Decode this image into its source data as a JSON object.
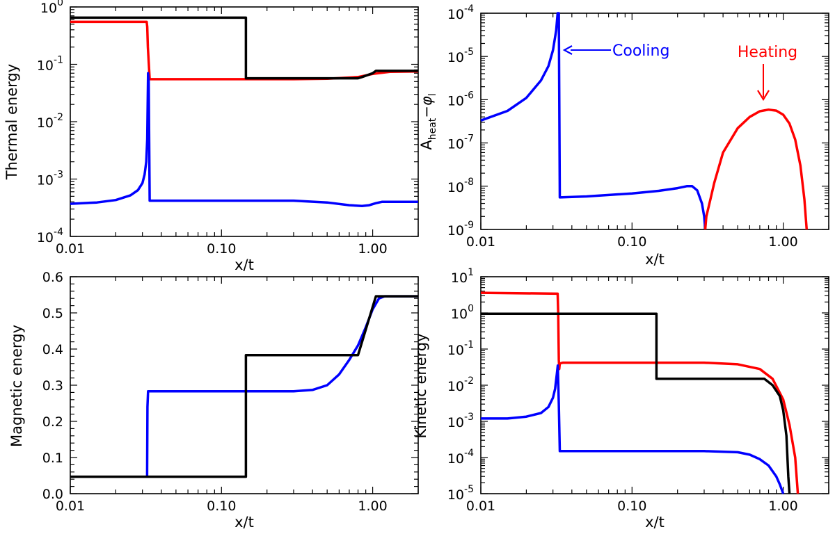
{
  "chart_data": [
    {
      "id": "thermal",
      "type": "line",
      "yscale": "log",
      "xscale": "log",
      "xlim": [
        0.01,
        2.0
      ],
      "ylim": [
        0.0001,
        1
      ],
      "xlabel": "x/t",
      "ylabel": "Thermal energy",
      "xticks": [
        {
          "value": 0.01,
          "label": "0.01"
        },
        {
          "value": 0.1,
          "label": "0.10"
        },
        {
          "value": 1.0,
          "label": "1.00"
        }
      ],
      "yticks": [
        {
          "value": 0.0001,
          "mant": "10",
          "exp": "-4"
        },
        {
          "value": 0.001,
          "mant": "10",
          "exp": "-3"
        },
        {
          "value": 0.01,
          "mant": "10",
          "exp": "-2"
        },
        {
          "value": 0.1,
          "mant": "10",
          "exp": "-1"
        },
        {
          "value": 1,
          "mant": "10",
          "exp": "0"
        }
      ],
      "series": [
        {
          "name": "red",
          "color": "#ff0000",
          "points": [
            [
              0.01,
              0.55
            ],
            [
              0.032,
              0.55
            ],
            [
              0.0323,
              0.45
            ],
            [
              0.0326,
              0.2
            ],
            [
              0.033,
              0.11
            ],
            [
              0.0335,
              0.055
            ],
            [
              0.1,
              0.055
            ],
            [
              0.3,
              0.055
            ],
            [
              0.5,
              0.056
            ],
            [
              0.8,
              0.06
            ],
            [
              1.0,
              0.068
            ],
            [
              1.3,
              0.074
            ],
            [
              2.0,
              0.075
            ]
          ]
        },
        {
          "name": "blue",
          "color": "#0000ff",
          "points": [
            [
              0.01,
              0.00037
            ],
            [
              0.015,
              0.00039
            ],
            [
              0.02,
              0.00043
            ],
            [
              0.025,
              0.00052
            ],
            [
              0.028,
              0.00064
            ],
            [
              0.03,
              0.00085
            ],
            [
              0.031,
              0.0012
            ],
            [
              0.0318,
              0.002
            ],
            [
              0.0323,
              0.005
            ],
            [
              0.0327,
              0.07
            ],
            [
              0.033,
              0.05
            ],
            [
              0.0335,
              0.00042
            ],
            [
              0.1,
              0.00042
            ],
            [
              0.3,
              0.00042
            ],
            [
              0.5,
              0.00039
            ],
            [
              0.7,
              0.00035
            ],
            [
              0.85,
              0.00034
            ],
            [
              0.95,
              0.00035
            ],
            [
              1.05,
              0.00038
            ],
            [
              1.15,
              0.0004
            ],
            [
              2.0,
              0.0004
            ]
          ]
        },
        {
          "name": "black",
          "color": "#000000",
          "points": [
            [
              0.01,
              0.65
            ],
            [
              0.145,
              0.65
            ],
            [
              0.145,
              0.057
            ],
            [
              0.8,
              0.057
            ],
            [
              0.85,
              0.06
            ],
            [
              1.0,
              0.07
            ],
            [
              1.05,
              0.077
            ],
            [
              2.0,
              0.077
            ]
          ]
        }
      ]
    },
    {
      "id": "aheat",
      "type": "line",
      "yscale": "log",
      "xscale": "log",
      "xlim": [
        0.01,
        2.0
      ],
      "ylim": [
        1e-09,
        0.0001
      ],
      "xlabel": "x/t",
      "ylabel": "A_heat − φ_l",
      "ylabel_parts": {
        "a": "A",
        "heat": "heat",
        "minus": "−",
        "phi": "φ",
        "l": "l"
      },
      "xticks": [
        {
          "value": 0.01,
          "label": "0.01"
        },
        {
          "value": 0.1,
          "label": "0.10"
        },
        {
          "value": 1.0,
          "label": "1.00"
        }
      ],
      "yticks": [
        {
          "value": 1e-09,
          "mant": "10",
          "exp": "-9"
        },
        {
          "value": 1e-08,
          "mant": "10",
          "exp": "-8"
        },
        {
          "value": 1e-07,
          "mant": "10",
          "exp": "-7"
        },
        {
          "value": 1e-06,
          "mant": "10",
          "exp": "-6"
        },
        {
          "value": 1e-05,
          "mant": "10",
          "exp": "-5"
        },
        {
          "value": 0.0001,
          "mant": "10",
          "exp": "-4"
        }
      ],
      "annotations": [
        {
          "text": "Cooling",
          "color": "#0000ff",
          "arrow_to": [
            0.0335,
            1.1e-05
          ]
        },
        {
          "text": "Heating",
          "color": "#ff0000",
          "arrow_to": [
            0.75,
            1.4e-06
          ]
        }
      ],
      "series": [
        {
          "name": "blue",
          "color": "#0000ff",
          "points": [
            [
              0.01,
              3.3e-07
            ],
            [
              0.015,
              5.5e-07
            ],
            [
              0.02,
              1.1e-06
            ],
            [
              0.025,
              2.8e-06
            ],
            [
              0.028,
              6e-06
            ],
            [
              0.03,
              1.4e-05
            ],
            [
              0.0315,
              4e-05
            ],
            [
              0.0322,
              0.0001
            ],
            [
              0.0328,
              0.0001
            ],
            [
              0.0333,
              5.5e-09
            ],
            [
              0.05,
              5.8e-09
            ],
            [
              0.1,
              6.8e-09
            ],
            [
              0.15,
              7.8e-09
            ],
            [
              0.2,
              9e-09
            ],
            [
              0.23,
              1e-08
            ],
            [
              0.25,
              1e-08
            ],
            [
              0.27,
              8e-09
            ],
            [
              0.29,
              4e-09
            ],
            [
              0.3,
              2e-09
            ],
            [
              0.305,
              1e-09
            ]
          ]
        },
        {
          "name": "red",
          "color": "#ff0000",
          "points": [
            [
              0.305,
              1e-09
            ],
            [
              0.31,
              2e-09
            ],
            [
              0.33,
              5e-09
            ],
            [
              0.35,
              1.2e-08
            ],
            [
              0.4,
              6e-08
            ],
            [
              0.5,
              2.2e-07
            ],
            [
              0.6,
              4e-07
            ],
            [
              0.7,
              5.4e-07
            ],
            [
              0.8,
              5.9e-07
            ],
            [
              0.9,
              5.6e-07
            ],
            [
              1.0,
              4.5e-07
            ],
            [
              1.1,
              2.8e-07
            ],
            [
              1.2,
              1.2e-07
            ],
            [
              1.3,
              3e-08
            ],
            [
              1.38,
              5e-09
            ],
            [
              1.43,
              1e-09
            ]
          ]
        }
      ]
    },
    {
      "id": "magnetic",
      "type": "line",
      "yscale": "linear",
      "xscale": "log",
      "xlim": [
        0.01,
        2.0
      ],
      "ylim": [
        0.0,
        0.6
      ],
      "xlabel": "x/t",
      "ylabel": "Magnetic energy",
      "xticks": [
        {
          "value": 0.01,
          "label": "0.01"
        },
        {
          "value": 0.1,
          "label": "0.10"
        },
        {
          "value": 1.0,
          "label": "1.00"
        }
      ],
      "yticks": [
        {
          "value": 0.0,
          "label": "0.0"
        },
        {
          "value": 0.1,
          "label": "0.1"
        },
        {
          "value": 0.2,
          "label": "0.2"
        },
        {
          "value": 0.3,
          "label": "0.3"
        },
        {
          "value": 0.4,
          "label": "0.4"
        },
        {
          "value": 0.5,
          "label": "0.5"
        },
        {
          "value": 0.6,
          "label": "0.6"
        }
      ],
      "series": [
        {
          "name": "blue",
          "color": "#0000ff",
          "points": [
            [
              0.0322,
              0.045
            ],
            [
              0.0324,
              0.24
            ],
            [
              0.0327,
              0.283
            ],
            [
              0.1,
              0.283
            ],
            [
              0.3,
              0.283
            ],
            [
              0.4,
              0.287
            ],
            [
              0.5,
              0.3
            ],
            [
              0.6,
              0.33
            ],
            [
              0.7,
              0.37
            ],
            [
              0.8,
              0.41
            ],
            [
              0.9,
              0.46
            ],
            [
              1.0,
              0.51
            ],
            [
              1.1,
              0.54
            ],
            [
              1.2,
              0.546
            ],
            [
              2.0,
              0.546
            ]
          ]
        },
        {
          "name": "black",
          "color": "#000000",
          "points": [
            [
              0.01,
              0.047
            ],
            [
              0.145,
              0.047
            ],
            [
              0.145,
              0.383
            ],
            [
              0.8,
              0.383
            ],
            [
              1.05,
              0.546
            ],
            [
              2.0,
              0.546
            ]
          ]
        }
      ]
    },
    {
      "id": "kinetic",
      "type": "line",
      "yscale": "log",
      "xscale": "log",
      "xlim": [
        0.01,
        2.0
      ],
      "ylim": [
        1e-05,
        10
      ],
      "xlabel": "x/t",
      "ylabel": "Kinetic energy",
      "xticks": [
        {
          "value": 0.01,
          "label": "0.01"
        },
        {
          "value": 0.1,
          "label": "0.10"
        },
        {
          "value": 1.0,
          "label": "1.00"
        }
      ],
      "yticks": [
        {
          "value": 1e-05,
          "mant": "10",
          "exp": "-5"
        },
        {
          "value": 0.0001,
          "mant": "10",
          "exp": "-4"
        },
        {
          "value": 0.001,
          "mant": "10",
          "exp": "-3"
        },
        {
          "value": 0.01,
          "mant": "10",
          "exp": "-2"
        },
        {
          "value": 0.1,
          "mant": "10",
          "exp": "-1"
        },
        {
          "value": 1,
          "mant": "10",
          "exp": "0"
        },
        {
          "value": 10,
          "mant": "10",
          "exp": "1"
        }
      ],
      "series": [
        {
          "name": "red",
          "color": "#ff0000",
          "points": [
            [
              0.01,
              3.6
            ],
            [
              0.0322,
              3.4
            ],
            [
              0.0325,
              1.0
            ],
            [
              0.0328,
              0.05
            ],
            [
              0.033,
              0.028
            ],
            [
              0.0333,
              0.04
            ],
            [
              0.035,
              0.042
            ],
            [
              0.1,
              0.042
            ],
            [
              0.3,
              0.042
            ],
            [
              0.5,
              0.038
            ],
            [
              0.7,
              0.028
            ],
            [
              0.85,
              0.015
            ],
            [
              1.0,
              0.004
            ],
            [
              1.1,
              0.0008
            ],
            [
              1.2,
              0.0001
            ],
            [
              1.25,
              1e-05
            ]
          ]
        },
        {
          "name": "blue",
          "color": "#0000ff",
          "points": [
            [
              0.01,
              0.0012
            ],
            [
              0.015,
              0.0012
            ],
            [
              0.02,
              0.00135
            ],
            [
              0.025,
              0.0017
            ],
            [
              0.028,
              0.0025
            ],
            [
              0.03,
              0.0045
            ],
            [
              0.031,
              0.008
            ],
            [
              0.0318,
              0.02
            ],
            [
              0.0323,
              0.035
            ],
            [
              0.0328,
              0.003
            ],
            [
              0.0333,
              0.00015
            ],
            [
              0.1,
              0.00015
            ],
            [
              0.3,
              0.00015
            ],
            [
              0.5,
              0.00014
            ],
            [
              0.6,
              0.00012
            ],
            [
              0.7,
              9e-05
            ],
            [
              0.8,
              6e-05
            ],
            [
              0.9,
              3e-05
            ],
            [
              0.95,
              1.8e-05
            ],
            [
              1.0,
              1e-05
            ]
          ]
        },
        {
          "name": "black",
          "color": "#000000",
          "points": [
            [
              0.01,
              0.95
            ],
            [
              0.145,
              0.95
            ],
            [
              0.145,
              0.015
            ],
            [
              0.5,
              0.015
            ],
            [
              0.75,
              0.015
            ],
            [
              0.85,
              0.01
            ],
            [
              0.95,
              0.005
            ],
            [
              1.0,
              0.002
            ],
            [
              1.05,
              0.0004
            ],
            [
              1.08,
              3e-05
            ],
            [
              1.1,
              1e-05
            ]
          ]
        }
      ]
    }
  ]
}
